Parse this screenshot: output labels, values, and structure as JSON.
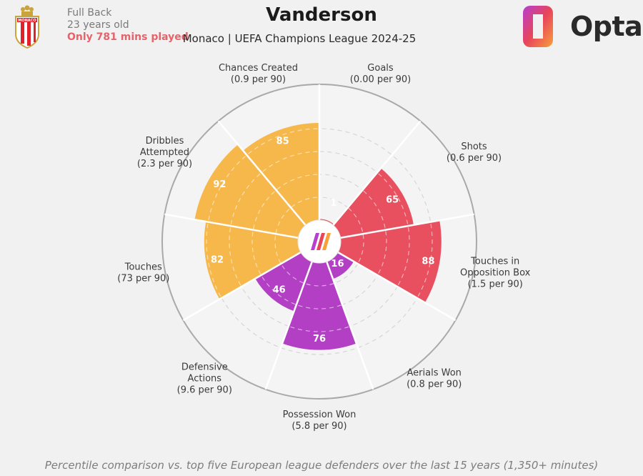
{
  "header": {
    "position": "Full Back",
    "age": "23 years old",
    "minutes_note": "Only 781 mins played",
    "player_name": "Vanderson",
    "subtitle": "Monaco | UEFA Champions League 2024-25",
    "brand": "Opta",
    "crest_text": "MONACO"
  },
  "chart_data": {
    "type": "radar-bar",
    "max": 100,
    "rings": [
      20,
      40,
      60,
      80
    ],
    "metrics": [
      {
        "name": [
          "Goals"
        ],
        "per90": "(0.00 per 90)",
        "percentile": 1,
        "group": "attacking"
      },
      {
        "name": [
          "Shots"
        ],
        "per90": "(0.6 per 90)",
        "percentile": 65,
        "group": "attacking"
      },
      {
        "name": [
          "Touches in",
          "Opposition Box"
        ],
        "per90": "(1.5 per 90)",
        "percentile": 88,
        "group": "attacking"
      },
      {
        "name": [
          "Aerials Won"
        ],
        "per90": "(0.8 per 90)",
        "percentile": 16,
        "group": "defending"
      },
      {
        "name": [
          "Possession Won"
        ],
        "per90": "(5.8 per 90)",
        "percentile": 76,
        "group": "defending"
      },
      {
        "name": [
          "Defensive",
          "Actions"
        ],
        "per90": "(9.6 per 90)",
        "percentile": 46,
        "group": "defending"
      },
      {
        "name": [
          "Touches"
        ],
        "per90": "(73 per 90)",
        "percentile": 82,
        "group": "possession"
      },
      {
        "name": [
          "Dribbles",
          "Attempted"
        ],
        "per90": "(2.3 per 90)",
        "percentile": 92,
        "group": "possession"
      },
      {
        "name": [
          "Chances Created"
        ],
        "per90": "(0.9 per 90)",
        "percentile": 85,
        "group": "possession"
      }
    ],
    "colors": {
      "attacking": "#e9505f",
      "defending": "#b340c4",
      "possession": "#f6b84b"
    }
  },
  "footer": {
    "note": "Percentile comparison vs. top five European league defenders over the last 15 years (1,350+ minutes)"
  }
}
